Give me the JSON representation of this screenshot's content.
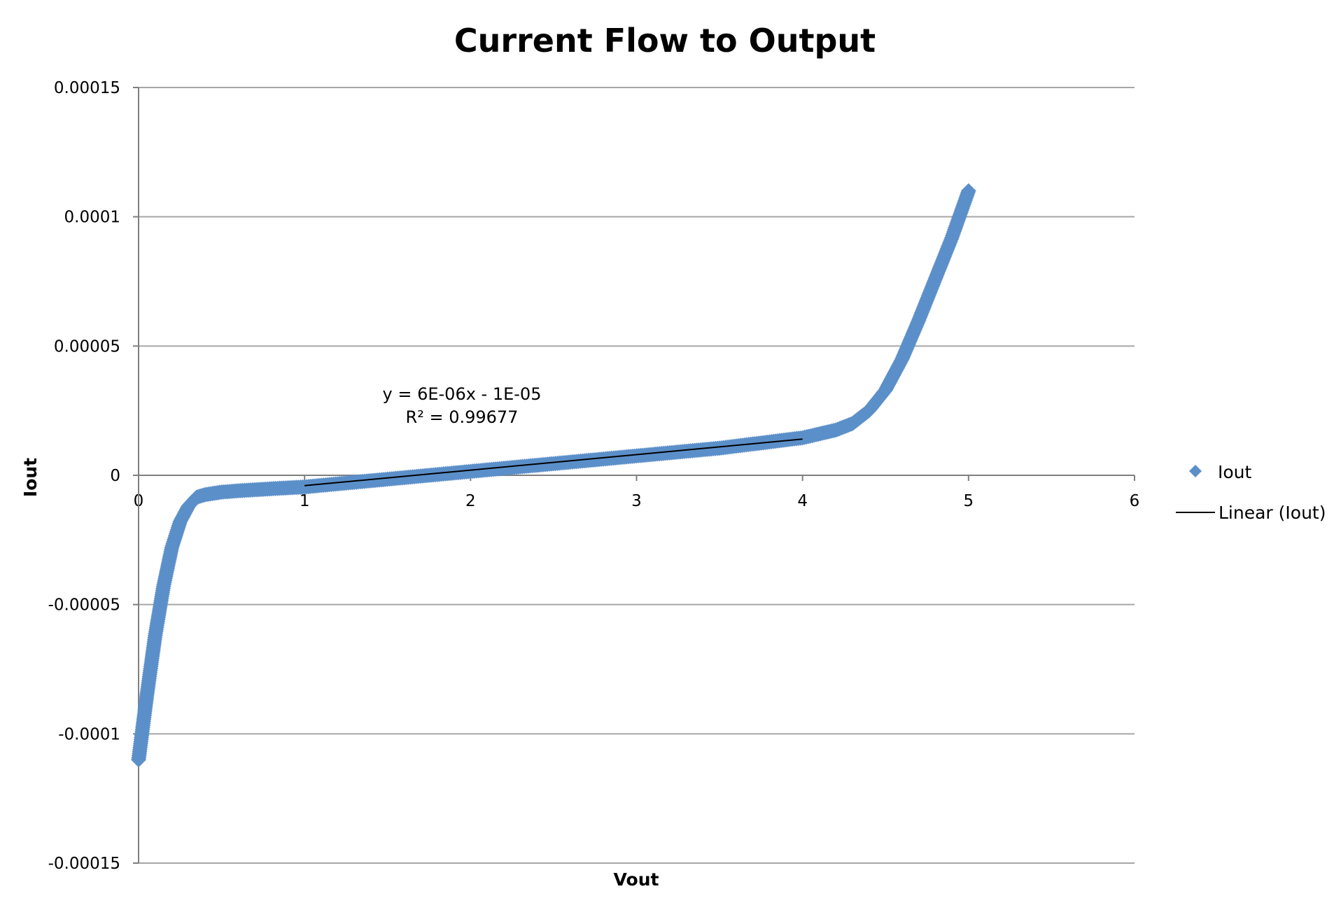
{
  "chart_data": {
    "type": "scatter",
    "title": "Current Flow to Output",
    "xlabel": "Vout",
    "ylabel": "Iout",
    "xlim": [
      0,
      6
    ],
    "ylim": [
      -0.00015,
      0.00015
    ],
    "x_ticks": [
      0,
      1,
      2,
      3,
      4,
      5,
      6
    ],
    "x_tick_labels": [
      "0",
      "1",
      "2",
      "3",
      "4",
      "5",
      "6"
    ],
    "y_ticks": [
      0.00015,
      0.0001,
      5e-05,
      0,
      -5e-05,
      -0.0001,
      -0.00015
    ],
    "y_tick_labels": [
      "0.00015",
      "0.0001",
      "0.00005",
      "0",
      "-0.00005",
      "-0.0001",
      "-0.00015"
    ],
    "grid": "horizontal",
    "legend_position": "right",
    "series": [
      {
        "name": "Iout",
        "marker": "diamond",
        "color": "#5b8fc9",
        "x": [
          0.0,
          0.05,
          0.1,
          0.15,
          0.2,
          0.25,
          0.3,
          0.35,
          0.4,
          0.5,
          0.6,
          0.8,
          1.0,
          1.5,
          2.0,
          2.5,
          3.0,
          3.5,
          4.0,
          4.2,
          4.3,
          4.4,
          4.5,
          4.6,
          4.7,
          4.8,
          4.9,
          5.0
        ],
        "y": [
          -0.00011,
          -8.5e-05,
          -6.2e-05,
          -4.3e-05,
          -2.8e-05,
          -1.8e-05,
          -1.2e-05,
          -8.5e-06,
          -7.5e-06,
          -6.5e-06,
          -6e-06,
          -5.2e-06,
          -4.5e-06,
          -1.5e-06,
          1.5e-06,
          4.5e-06,
          7.5e-06,
          1.05e-05,
          1.45e-05,
          1.75e-05,
          2e-05,
          2.5e-05,
          3.3e-05,
          4.5e-05,
          6e-05,
          7.6e-05,
          9.2e-05,
          0.00011
        ]
      }
    ],
    "trendline": {
      "name": "Linear (Iout)",
      "type": "linear",
      "color": "#000000",
      "x": [
        1,
        4
      ],
      "y": [
        -4e-06,
        1.4e-05
      ],
      "equation": "y = 6E-06x - 1E-05",
      "r_squared": "R² = 0.99677"
    }
  }
}
